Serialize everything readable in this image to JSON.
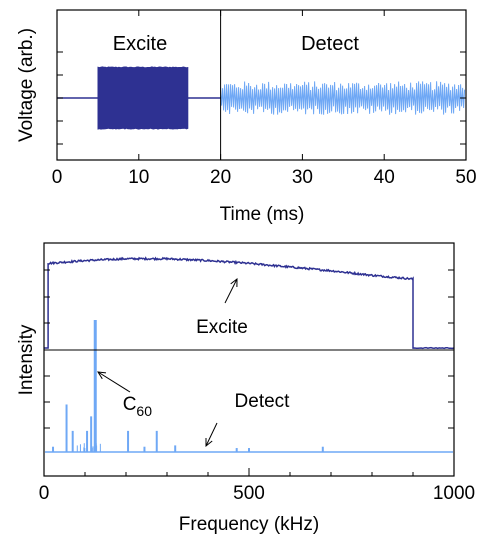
{
  "colors": {
    "excite": "#2e3192",
    "detect": "#6fa8f5",
    "axis": "#000000"
  },
  "chart_data": [
    {
      "type": "line",
      "title": "",
      "xlabel": "Time (ms)",
      "ylabel": "Voltage (arb.)",
      "xlim": [
        0,
        50
      ],
      "ylim": [
        -1,
        1
      ],
      "xticks": [
        "0",
        "10",
        "20",
        "30",
        "40",
        "50"
      ],
      "grid": false,
      "annotations": [
        "Excite",
        "Detect"
      ],
      "divider_x": 20,
      "series": [
        {
          "name": "Excite",
          "color": "#2e3192",
          "baseline": 0,
          "burst_start": 5,
          "burst_end": 16,
          "burst_amplitude": 0.78,
          "x_range": [
            0,
            20
          ]
        },
        {
          "name": "Detect",
          "color": "#6fa8f5",
          "baseline": 0,
          "noise_amplitude": 0.42,
          "x_range": [
            20,
            50
          ]
        }
      ]
    },
    {
      "type": "line",
      "title": "",
      "xlabel": "Frequency (kHz)",
      "ylabel": "Intensity",
      "xlim": [
        0,
        1000
      ],
      "xticks": [
        "0",
        "500",
        "1000"
      ],
      "grid": false,
      "annotations": [
        {
          "text": "Excite",
          "points_to": 460
        },
        {
          "text": "C",
          "subscript": "60",
          "points_to": 125
        },
        {
          "text": "Detect",
          "points_to": 400
        }
      ],
      "series": [
        {
          "name": "Excite",
          "color": "#2e3192",
          "x_range": [
            10,
            900
          ],
          "profile_x": [
            10,
            100,
            200,
            300,
            400,
            500,
            600,
            700,
            800,
            900
          ],
          "profile_y": [
            0.92,
            0.95,
            0.97,
            0.97,
            0.95,
            0.92,
            0.88,
            0.84,
            0.79,
            0.75
          ],
          "off_level": 0.0
        },
        {
          "name": "Detect",
          "color": "#6fa8f5",
          "baseline": 0.0,
          "peaks": [
            {
              "x": 125,
              "y": 1.0
            },
            {
              "x": 55,
              "y": 0.36
            },
            {
              "x": 70,
              "y": 0.16
            },
            {
              "x": 105,
              "y": 0.16
            },
            {
              "x": 115,
              "y": 0.27
            },
            {
              "x": 205,
              "y": 0.16
            },
            {
              "x": 275,
              "y": 0.16
            },
            {
              "x": 320,
              "y": 0.05
            },
            {
              "x": 245,
              "y": 0.04
            },
            {
              "x": 470,
              "y": 0.03
            },
            {
              "x": 500,
              "y": 0.03
            },
            {
              "x": 680,
              "y": 0.04
            },
            {
              "x": 22,
              "y": 0.04
            }
          ]
        }
      ]
    }
  ]
}
